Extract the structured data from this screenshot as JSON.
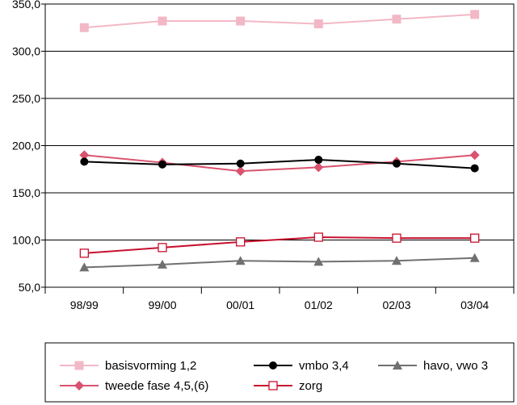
{
  "chart_data": {
    "type": "line",
    "title": "",
    "xlabel": "",
    "ylabel": "",
    "ylim": [
      50,
      350
    ],
    "yticks": [
      50,
      100,
      150,
      200,
      250,
      300,
      350
    ],
    "ytick_labels": [
      "50,0",
      "100,0",
      "150,0",
      "200,0",
      "250,0",
      "300,0",
      "350,0"
    ],
    "grid": true,
    "legend_position": "bottom",
    "categories": [
      "98/99",
      "99/00",
      "00/01",
      "01/02",
      "02/03",
      "03/04"
    ],
    "series": [
      {
        "name": "basisvorming 1,2",
        "values": [
          325,
          332,
          332,
          329,
          334,
          339
        ],
        "color": "#f2b8c6",
        "marker": "square-filled"
      },
      {
        "name": "vmbo 3,4",
        "values": [
          183,
          180,
          181,
          185,
          181,
          176
        ],
        "color": "#000000",
        "marker": "circle-filled"
      },
      {
        "name": "havo, vwo 3",
        "values": [
          71,
          74,
          78,
          77,
          78,
          81
        ],
        "color": "#707070",
        "marker": "triangle-filled"
      },
      {
        "name": "tweede fase 4,5,(6)",
        "values": [
          190,
          182,
          173,
          177,
          183,
          190
        ],
        "color": "#d9536e",
        "marker": "diamond-filled"
      },
      {
        "name": "zorg",
        "values": [
          86,
          92,
          98,
          103,
          102,
          102
        ],
        "color": "#c8102e",
        "marker": "square-open"
      }
    ]
  }
}
